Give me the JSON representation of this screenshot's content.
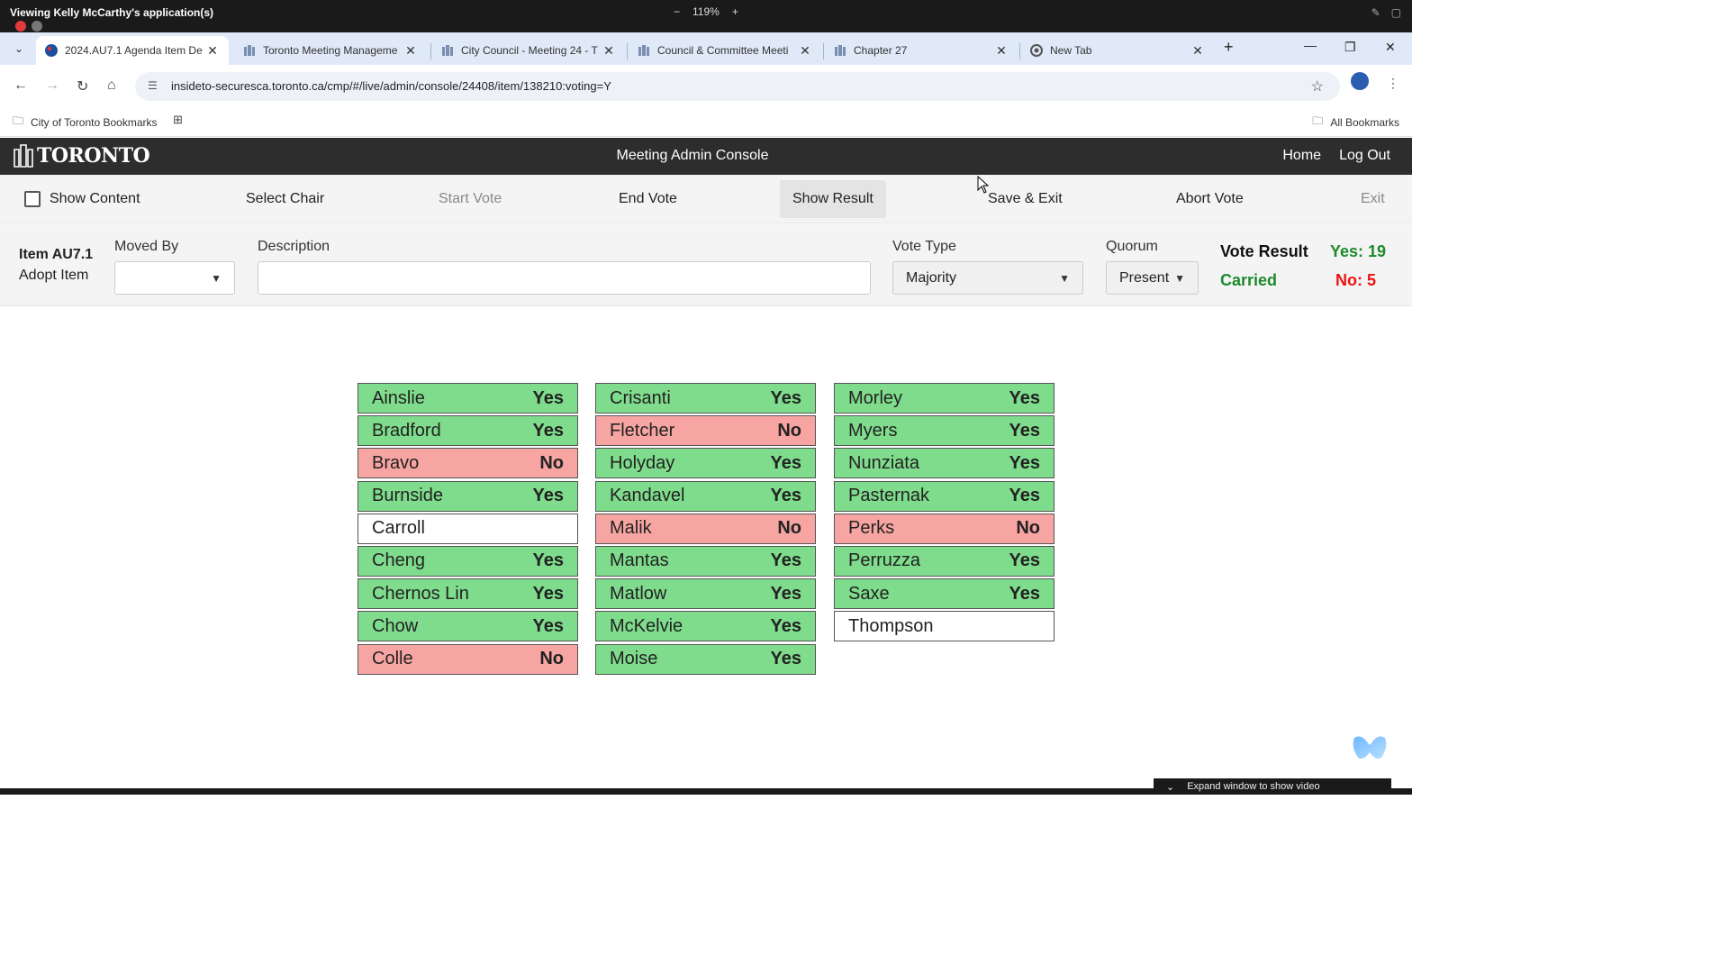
{
  "share": {
    "title": "Viewing Kelly McCarthy's application(s)",
    "zoom_minus": "−",
    "zoom": "119%",
    "zoom_plus": "+"
  },
  "tabs": [
    {
      "label": "2024.AU7.1 Agenda Item De",
      "icon": "toronto-favicon",
      "active": true
    },
    {
      "label": "Toronto Meeting Manageme",
      "icon": "city-hall-favicon",
      "active": false
    },
    {
      "label": "City Council - Meeting 24 - T",
      "icon": "city-hall-favicon",
      "active": false
    },
    {
      "label": "Council & Committee Meeti",
      "icon": "city-hall-favicon",
      "active": false
    },
    {
      "label": "Chapter 27",
      "icon": "city-hall-favicon",
      "active": false
    },
    {
      "label": "New Tab",
      "icon": "chrome-favicon",
      "active": false
    }
  ],
  "address": {
    "url": "insideto-securesca.toronto.ca/cmp/#/live/admin/console/24408/item/138210:voting=Y"
  },
  "bookmarks": {
    "folder": "City of Toronto Bookmarks",
    "all": "All Bookmarks"
  },
  "app": {
    "logo": "TORONTO",
    "title": "Meeting Admin Console",
    "nav_home": "Home",
    "nav_logout": "Log Out"
  },
  "toolbar": {
    "show_content": "Show Content",
    "select_chair": "Select Chair",
    "start_vote": "Start Vote",
    "end_vote": "End Vote",
    "show_result": "Show Result",
    "save_exit": "Save & Exit",
    "abort_vote": "Abort Vote",
    "exit": "Exit"
  },
  "form": {
    "item_id": "Item AU7.1",
    "item_name": "Adopt Item",
    "moved_by_label": "Moved By",
    "moved_by_value": "",
    "description_label": "Description",
    "description_value": "",
    "vote_type_label": "Vote Type",
    "vote_type_value": "Majority",
    "quorum_label": "Quorum",
    "quorum_value": "Present"
  },
  "result": {
    "title": "Vote Result",
    "status": "Carried",
    "yes": "Yes: 19",
    "no": "No: 5",
    "colors": {
      "carried": "#1c8a2c",
      "no": "#e11111"
    }
  },
  "votes": {
    "columns": [
      [
        {
          "name": "Ainslie",
          "vote": "Yes"
        },
        {
          "name": "Bradford",
          "vote": "Yes"
        },
        {
          "name": "Bravo",
          "vote": "No"
        },
        {
          "name": "Burnside",
          "vote": "Yes"
        },
        {
          "name": "Carroll",
          "vote": ""
        },
        {
          "name": "Cheng",
          "vote": "Yes"
        },
        {
          "name": "Chernos Lin",
          "vote": "Yes"
        },
        {
          "name": "Chow",
          "vote": "Yes"
        },
        {
          "name": "Colle",
          "vote": "No"
        }
      ],
      [
        {
          "name": "Crisanti",
          "vote": "Yes"
        },
        {
          "name": "Fletcher",
          "vote": "No"
        },
        {
          "name": "Holyday",
          "vote": "Yes"
        },
        {
          "name": "Kandavel",
          "vote": "Yes"
        },
        {
          "name": "Malik",
          "vote": "No"
        },
        {
          "name": "Mantas",
          "vote": "Yes"
        },
        {
          "name": "Matlow",
          "vote": "Yes"
        },
        {
          "name": "McKelvie",
          "vote": "Yes"
        },
        {
          "name": "Moise",
          "vote": "Yes"
        }
      ],
      [
        {
          "name": "Morley",
          "vote": "Yes"
        },
        {
          "name": "Myers",
          "vote": "Yes"
        },
        {
          "name": "Nunziata",
          "vote": "Yes"
        },
        {
          "name": "Pasternak",
          "vote": "Yes"
        },
        {
          "name": "Perks",
          "vote": "No"
        },
        {
          "name": "Perruzza",
          "vote": "Yes"
        },
        {
          "name": "Saxe",
          "vote": "Yes"
        },
        {
          "name": "Thompson",
          "vote": ""
        }
      ]
    ],
    "colors": {
      "yes": "#7fdc8c",
      "no": "#f7a5a2",
      "none": "#ffffff"
    }
  },
  "footer": {
    "expand_video": "Expand window to show video"
  }
}
